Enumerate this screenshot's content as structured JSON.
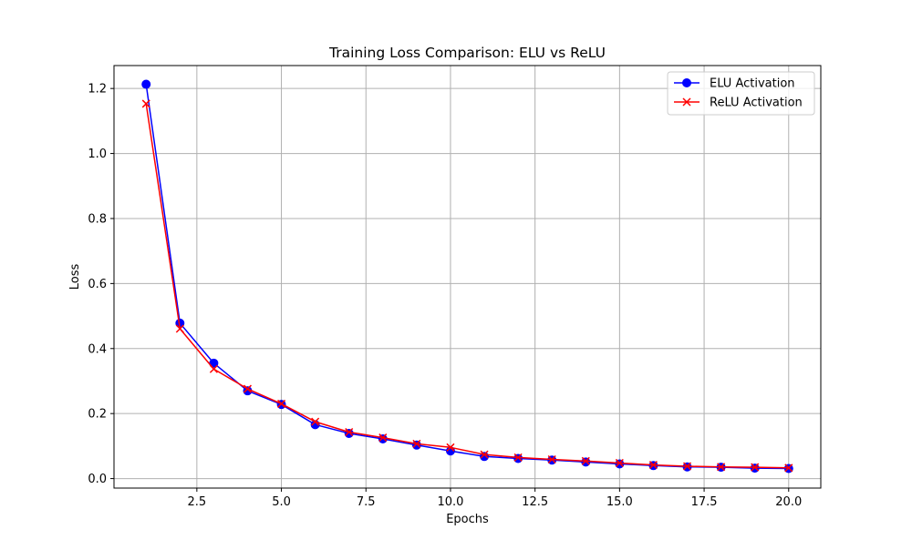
{
  "chart_data": {
    "type": "line",
    "title": "Training Loss Comparison: ELU vs ReLU",
    "xlabel": "Epochs",
    "ylabel": "Loss",
    "xlim": [
      0.05,
      20.95
    ],
    "ylim": [
      -0.0292,
      1.2705
    ],
    "xticks": [
      2.5,
      5.0,
      7.5,
      10.0,
      12.5,
      15.0,
      17.5,
      20.0
    ],
    "xtick_labels": [
      "2.5",
      "5.0",
      "7.5",
      "10.0",
      "12.5",
      "15.0",
      "17.5",
      "20.0"
    ],
    "yticks": [
      0.0,
      0.2,
      0.4,
      0.6,
      0.8,
      1.0,
      1.2
    ],
    "ytick_labels": [
      "0.0",
      "0.2",
      "0.4",
      "0.6",
      "0.8",
      "1.0",
      "1.2"
    ],
    "grid": true,
    "legend_position": "top-right",
    "x": [
      1,
      2,
      3,
      4,
      5,
      6,
      7,
      8,
      9,
      10,
      11,
      12,
      13,
      14,
      15,
      16,
      17,
      18,
      19,
      20
    ],
    "series": [
      {
        "name": "ELU Activation",
        "color": "#0000ff",
        "marker": "circle",
        "values": [
          1.213,
          0.478,
          0.355,
          0.27,
          0.228,
          0.166,
          0.139,
          0.122,
          0.103,
          0.085,
          0.068,
          0.062,
          0.057,
          0.051,
          0.045,
          0.04,
          0.036,
          0.035,
          0.032,
          0.031
        ]
      },
      {
        "name": "ReLU Activation",
        "color": "#ff0000",
        "marker": "x",
        "values": [
          1.153,
          0.461,
          0.337,
          0.276,
          0.23,
          0.175,
          0.143,
          0.126,
          0.107,
          0.096,
          0.074,
          0.065,
          0.059,
          0.054,
          0.048,
          0.042,
          0.038,
          0.036,
          0.035,
          0.033
        ]
      }
    ]
  }
}
